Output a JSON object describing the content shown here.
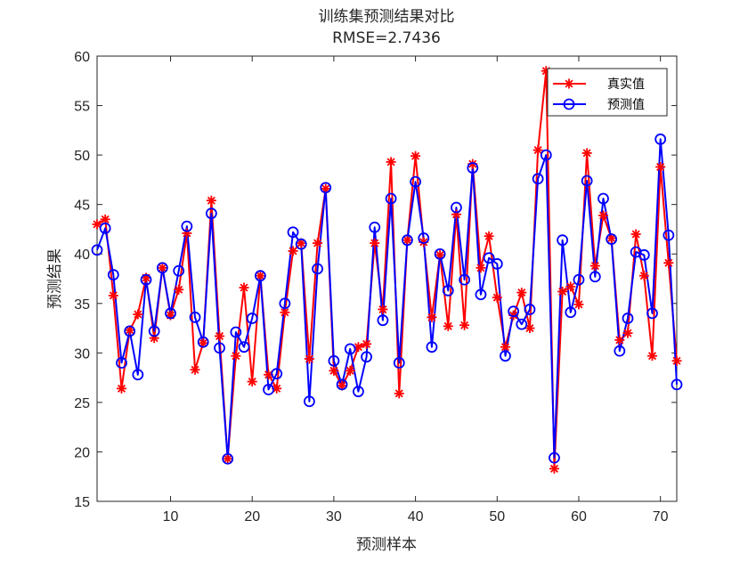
{
  "chart_data": {
    "type": "line",
    "title": "训练集预测结果对比",
    "subtitle": "RMSE=2.7436",
    "xlabel": "预测样本",
    "ylabel": "预测结果",
    "xlim": [
      1,
      72
    ],
    "ylim": [
      15,
      60
    ],
    "xticks": [
      10,
      20,
      30,
      40,
      50,
      60,
      70
    ],
    "yticks": [
      15,
      20,
      25,
      30,
      35,
      40,
      45,
      50,
      55,
      60
    ],
    "xtick_labels": [
      "10",
      "20",
      "30",
      "40",
      "50",
      "60",
      "70"
    ],
    "ytick_labels": [
      "15",
      "20",
      "25",
      "30",
      "35",
      "40",
      "45",
      "50",
      "55",
      "60"
    ],
    "legend_position": "top-right",
    "series": [
      {
        "name": "真实值",
        "color": "#ff0000",
        "marker": "asterisk",
        "values": [
          43.0,
          43.5,
          35.8,
          26.4,
          32.3,
          33.9,
          37.6,
          31.5,
          38.6,
          33.8,
          36.4,
          42.1,
          28.3,
          31.0,
          45.4,
          31.7,
          19.3,
          29.7,
          36.6,
          27.1,
          37.8,
          27.8,
          26.4,
          34.1,
          40.3,
          41.1,
          29.4,
          41.1,
          46.6,
          28.2,
          26.7,
          28.2,
          30.6,
          30.9,
          41.1,
          34.4,
          49.3,
          25.9,
          41.4,
          49.9,
          41.2,
          33.6,
          39.9,
          32.7,
          44.0,
          32.8,
          49.1,
          38.6,
          41.8,
          35.6,
          30.6,
          33.8,
          36.1,
          32.5,
          50.5,
          58.5,
          18.3,
          36.2,
          36.7,
          34.9,
          50.2,
          38.8,
          43.9,
          41.6,
          31.3,
          32.0,
          42.0,
          37.8,
          29.7,
          48.8,
          39.1,
          29.2
        ]
      },
      {
        "name": "预测值",
        "color": "#0000ff",
        "marker": "circle",
        "values": [
          40.4,
          42.6,
          37.9,
          29.0,
          32.2,
          27.8,
          37.4,
          32.2,
          38.6,
          34.0,
          38.3,
          42.8,
          33.6,
          31.1,
          44.1,
          30.5,
          19.3,
          32.1,
          30.6,
          33.5,
          37.8,
          26.3,
          27.9,
          35.0,
          42.2,
          41.0,
          25.1,
          38.5,
          46.7,
          29.2,
          26.8,
          30.4,
          26.1,
          29.6,
          42.7,
          33.3,
          45.6,
          29.0,
          41.4,
          47.3,
          41.6,
          30.6,
          40.0,
          36.3,
          44.7,
          37.4,
          48.7,
          35.9,
          39.6,
          39.0,
          29.7,
          34.2,
          32.9,
          34.4,
          47.6,
          50.0,
          19.4,
          41.4,
          34.1,
          37.4,
          47.4,
          37.7,
          45.6,
          41.5,
          30.2,
          33.5,
          40.2,
          39.9,
          34.0,
          51.6,
          41.9,
          26.8
        ]
      }
    ]
  }
}
